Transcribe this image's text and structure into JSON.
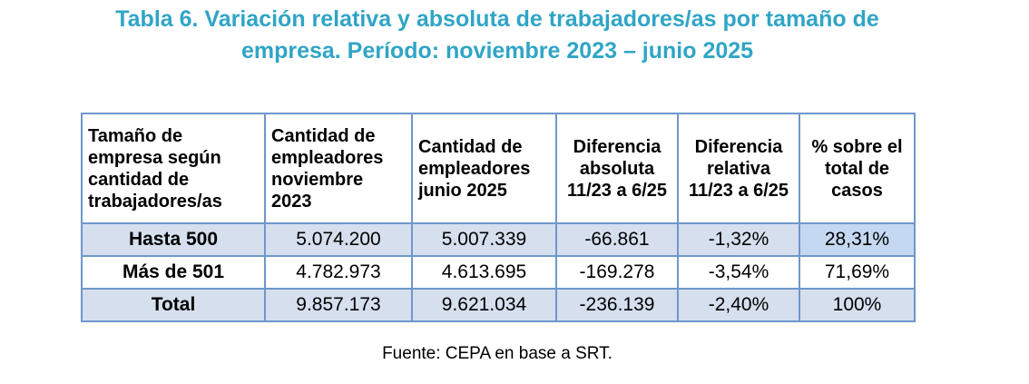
{
  "title_line1": "Tabla 6. Variación relativa y absoluta de trabajadores/as por tamaño de",
  "title_line2": "empresa. Período: noviembre 2023 – junio 2025",
  "headers": [
    "Tamaño de empresa según cantidad de trabajadores/as",
    "Cantidad de empleadores noviembre 2023",
    "Cantidad de empleadores junio 2025",
    "Diferencia absoluta 11/23 a 6/25",
    "Diferencia relativa 11/23 a 6/25",
    "% sobre el total de casos"
  ],
  "rows": [
    [
      "Hasta 500",
      "5.074.200",
      "5.007.339",
      "-66.861",
      "-1,32%",
      "28,31%"
    ],
    [
      "Más de 501",
      "4.782.973",
      "4.613.695",
      "-169.278",
      "-3,54%",
      "71,69%"
    ],
    [
      "Total",
      "9.857.173",
      "9.621.034",
      "-236.139",
      "-2,40%",
      "100%"
    ]
  ],
  "source": "Fuente: CEPA en base a SRT."
}
